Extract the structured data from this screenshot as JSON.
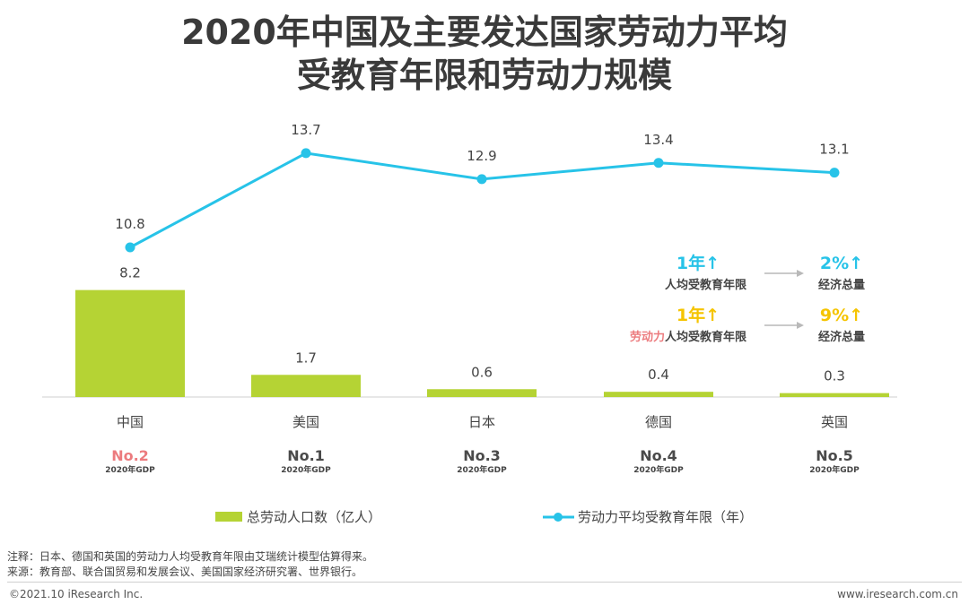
{
  "title": {
    "line1": "2020年中国及主要发达国家劳动力平均",
    "line2": "受教育年限和劳动力规模"
  },
  "chart_data": {
    "type": "bar+line",
    "categories": [
      "中国",
      "美国",
      "日本",
      "德国",
      "英国"
    ],
    "series": [
      {
        "name": "总劳动人口数（亿人）",
        "type": "bar",
        "values": [
          8.2,
          1.7,
          0.6,
          0.4,
          0.3
        ],
        "color": "#b5d334"
      },
      {
        "name": "劳动力平均受教育年限（年）",
        "type": "line",
        "values": [
          10.8,
          13.7,
          12.9,
          13.4,
          13.1
        ],
        "color": "#27c3e8"
      }
    ],
    "bar_labels": [
      "8.2",
      "1.7",
      "0.6",
      "0.4",
      "0.3"
    ],
    "line_labels": [
      "10.8",
      "13.7",
      "12.9",
      "13.4",
      "13.1"
    ],
    "bar_ylim": [
      0,
      9
    ],
    "line_ylim": [
      0,
      14
    ],
    "gdp_rank": [
      "No.2",
      "No.1",
      "No.3",
      "No.4",
      "No.5"
    ],
    "gdp_caption": "2020年GDP",
    "highlight_rank_color": "#ec7b7e",
    "rank_color": "#4a4a4a"
  },
  "annotations": [
    {
      "value": "1年↑",
      "value_color": "#27c3e8",
      "prefix": "",
      "label": "人均受教育年限",
      "result": "2%↑",
      "result_color": "#27c3e8",
      "result_label": "经济总量"
    },
    {
      "value": "1年↑",
      "value_color": "#f5c400",
      "prefix": "劳动力",
      "prefix_color": "#ec7b7e",
      "label": "人均受教育年限",
      "result": "9%↑",
      "result_color": "#f5c400",
      "result_label": "经济总量"
    }
  ],
  "legend": {
    "bar": "总劳动人口数（亿人）",
    "line": "劳动力平均受教育年限（年）"
  },
  "notes": {
    "note": "注释：日本、德国和英国的劳动力人均受教育年限由艾瑞统计模型估算得来。",
    "source": "来源：教育部、联合国贸易和发展会议、美国国家经济研究署、世界银行。"
  },
  "footer": {
    "copyright": "©2021.10 iResearch Inc.",
    "url": "www.iresearch.com.cn"
  }
}
